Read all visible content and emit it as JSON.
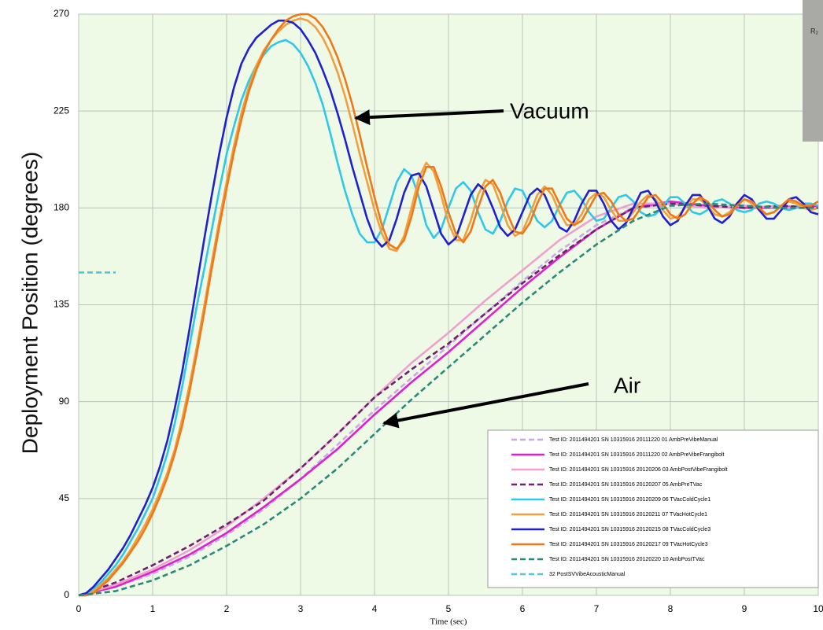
{
  "chart_data": {
    "type": "line",
    "y_label": "Deployment Position (degrees)",
    "x_label": "Time (sec)",
    "annotations": [
      "Vacuum",
      "Air"
    ],
    "photo_label": "R₂",
    "xlim": [
      0,
      10
    ],
    "xticks": [
      0,
      1,
      2,
      3,
      4,
      5,
      6,
      7,
      8,
      9,
      10
    ],
    "ylim": [
      0,
      270
    ],
    "yticks": [
      0,
      45,
      90,
      135,
      180,
      225,
      270
    ],
    "grid": true,
    "legend": "bottom-right",
    "x": [
      0,
      0.1,
      0.2,
      0.3,
      0.4,
      0.5,
      0.6,
      0.7,
      0.8,
      0.9,
      1,
      1.1,
      1.2,
      1.3,
      1.4,
      1.5,
      1.6,
      1.7,
      1.8,
      1.9,
      2,
      2.1,
      2.2,
      2.3,
      2.4,
      2.5,
      2.6,
      2.7,
      2.8,
      2.9,
      3,
      3.1,
      3.2,
      3.3,
      3.4,
      3.5,
      3.6,
      3.7,
      3.8,
      3.9,
      4,
      4.1,
      4.2,
      4.3,
      4.4,
      4.5,
      4.6,
      4.7,
      4.8,
      4.9,
      5,
      5.1,
      5.2,
      5.3,
      5.4,
      5.5,
      5.6,
      5.7,
      5.8,
      5.9,
      6,
      6.1,
      6.2,
      6.3,
      6.4,
      6.5,
      6.6,
      6.7,
      6.8,
      6.9,
      7,
      7.1,
      7.2,
      7.3,
      7.4,
      7.5,
      7.6,
      7.7,
      7.8,
      7.9,
      8,
      8.1,
      8.2,
      8.3,
      8.4,
      8.5,
      8.6,
      8.7,
      8.8,
      8.9,
      9,
      9.1,
      9.2,
      9.3,
      9.4,
      9.5,
      9.6,
      9.7,
      9.8,
      9.9,
      10
    ],
    "series": [
      {
        "name": "Test ID: 2011494201 SN 10315916 20111220 01 AmbPreVibeManual",
        "color": "#c8a8e8",
        "dashed": true,
        "x": [
          0,
          0.5,
          1,
          1.5,
          2,
          2.5,
          3,
          3.5,
          4,
          4.5,
          5,
          5.5,
          6,
          6.5,
          7,
          7.5,
          8,
          8.5,
          9,
          9.5,
          10
        ],
        "values": [
          0,
          4,
          10,
          18,
          28,
          40,
          54,
          70,
          86,
          101,
          116,
          131,
          146,
          160,
          172,
          180,
          182,
          181,
          180,
          181,
          180
        ]
      },
      {
        "name": "Test ID: 2011494201 SN 10315916 20111220 02 AmbPreVibeFrangibolt",
        "color": "#e020d0",
        "dashed": false,
        "x": [
          0,
          0.5,
          1,
          1.5,
          2,
          2.5,
          3,
          3.5,
          4,
          4.5,
          5,
          5.5,
          6,
          6.5,
          7,
          7.5,
          8,
          8.5,
          9,
          9.5,
          10
        ],
        "values": [
          0,
          4,
          11,
          19,
          29,
          41,
          54,
          68,
          84,
          99,
          113,
          128,
          143,
          157,
          170,
          180,
          183,
          181,
          180,
          180,
          181
        ]
      },
      {
        "name": "Test ID: 2011494201 SN 10315916 20120206 03 AmbPostVibeFrangibolt",
        "color": "#f0a0d0",
        "dashed": false,
        "x": [
          0,
          0.5,
          1,
          1.5,
          2,
          2.5,
          3,
          3.5,
          4,
          4.5,
          5,
          5.5,
          6,
          6.5,
          7,
          7.5,
          8,
          8.5,
          9,
          9.5,
          10
        ],
        "values": [
          0,
          5,
          12,
          21,
          32,
          45,
          59,
          75,
          92,
          108,
          122,
          137,
          151,
          165,
          176,
          182,
          182,
          180,
          181,
          180,
          180
        ]
      },
      {
        "name": "Test ID: 2011494201 SN 10315916 20120207 05 AmbPreTVac",
        "color": "#702070",
        "dashed": true,
        "x": [
          0,
          0.5,
          1,
          1.5,
          2,
          2.5,
          3,
          3.5,
          4,
          4.5,
          5,
          5.5,
          6,
          6.5,
          7,
          7.5,
          8,
          8.5,
          9,
          9.5,
          10
        ],
        "values": [
          0,
          6,
          14,
          23,
          33,
          44,
          59,
          75,
          92,
          105,
          117,
          131,
          145,
          158,
          170,
          180,
          182,
          181,
          180,
          181,
          180
        ]
      },
      {
        "name": "Test ID: 2011494201 SN 10315916 20120209 06 TVacColdCycle1",
        "color": "#30c8e8",
        "dashed": false,
        "values": [
          0,
          1,
          3,
          6,
          10,
          14,
          19,
          25,
          31,
          38,
          45,
          55,
          66,
          80,
          97,
          116,
          135,
          152,
          170,
          188,
          205,
          218,
          230,
          239,
          246,
          251,
          255,
          257,
          258,
          256,
          252,
          246,
          238,
          228,
          215,
          201,
          188,
          177,
          168,
          164,
          164,
          170,
          181,
          192,
          198,
          195,
          185,
          172,
          166,
          170,
          180,
          189,
          192,
          188,
          178,
          170,
          168,
          174,
          183,
          189,
          188,
          181,
          174,
          171,
          174,
          181,
          187,
          188,
          184,
          178,
          174,
          175,
          180,
          185,
          186,
          183,
          178,
          176,
          177,
          181,
          185,
          185,
          182,
          178,
          177,
          179,
          183,
          184,
          182,
          179,
          178,
          179,
          182,
          183,
          182,
          180,
          179,
          180,
          182,
          182,
          181
        ]
      },
      {
        "name": "Test ID: 2011494201 SN 10315916 20120211 07 TVacHotCycle1",
        "color": "#f0a040",
        "dashed": false,
        "values": [
          0,
          0,
          2,
          5,
          8,
          12,
          16,
          21,
          27,
          33,
          40,
          48,
          57,
          68,
          82,
          98,
          116,
          135,
          155,
          174,
          192,
          209,
          224,
          236,
          246,
          253,
          258,
          262,
          265,
          267,
          268,
          267,
          264,
          259,
          252,
          243,
          232,
          219,
          205,
          192,
          179,
          168,
          161,
          160,
          167,
          180,
          194,
          201,
          197,
          186,
          173,
          165,
          165,
          174,
          186,
          193,
          191,
          182,
          172,
          167,
          169,
          177,
          186,
          190,
          186,
          178,
          172,
          172,
          177,
          184,
          187,
          185,
          179,
          174,
          174,
          178,
          183,
          186,
          184,
          179,
          175,
          176,
          180,
          184,
          184,
          181,
          177,
          176,
          178,
          182,
          184,
          182,
          179,
          177,
          178,
          181,
          183,
          182,
          180,
          179,
          180
        ]
      },
      {
        "name": "Test ID: 2011494201 SN 10315916 20120215 08 TVacColdCycle3",
        "color": "#2020d0",
        "dashed": false,
        "values": [
          0,
          1,
          4,
          8,
          12,
          17,
          22,
          28,
          35,
          42,
          50,
          60,
          72,
          87,
          104,
          124,
          145,
          166,
          186,
          205,
          222,
          236,
          247,
          254,
          259,
          262,
          265,
          267,
          267,
          266,
          263,
          258,
          252,
          244,
          235,
          224,
          212,
          199,
          187,
          175,
          166,
          162,
          165,
          175,
          187,
          195,
          196,
          190,
          179,
          168,
          163,
          166,
          176,
          186,
          191,
          188,
          180,
          171,
          167,
          170,
          178,
          186,
          189,
          186,
          178,
          171,
          169,
          174,
          182,
          188,
          188,
          182,
          174,
          170,
          173,
          180,
          187,
          188,
          183,
          176,
          172,
          174,
          181,
          186,
          186,
          181,
          175,
          173,
          176,
          182,
          186,
          184,
          179,
          175,
          175,
          179,
          184,
          185,
          182,
          178,
          177
        ]
      },
      {
        "name": "Test ID: 2011494201 SN 10315916 20120217 09 TVacHotCycle3",
        "color": "#f07818",
        "dashed": false,
        "values": [
          0,
          0,
          1,
          4,
          7,
          11,
          15,
          20,
          25,
          31,
          38,
          46,
          55,
          66,
          79,
          95,
          113,
          132,
          152,
          171,
          189,
          206,
          221,
          234,
          244,
          252,
          258,
          263,
          267,
          269,
          270,
          270,
          268,
          264,
          258,
          250,
          240,
          228,
          214,
          199,
          185,
          172,
          163,
          161,
          165,
          176,
          190,
          199,
          199,
          190,
          178,
          168,
          164,
          169,
          180,
          190,
          193,
          187,
          177,
          169,
          168,
          173,
          182,
          189,
          189,
          182,
          175,
          172,
          174,
          180,
          186,
          187,
          183,
          177,
          174,
          175,
          180,
          185,
          186,
          182,
          177,
          175,
          177,
          182,
          185,
          183,
          179,
          176,
          177,
          181,
          184,
          183,
          180,
          177,
          178,
          181,
          184,
          183,
          181,
          181,
          183
        ]
      },
      {
        "name": "Test ID: 2011494201 SN 10315916 20120220 10 AmbPostTVac",
        "color": "#2a8a78",
        "dashed": true,
        "x": [
          0,
          0.5,
          1,
          1.5,
          2,
          2.5,
          3,
          3.5,
          4,
          4.5,
          5,
          5.5,
          6,
          6.5,
          7,
          7.5,
          8,
          8.5,
          9,
          9.5,
          10
        ],
        "values": [
          0,
          2,
          7,
          14,
          23,
          33,
          45,
          59,
          75,
          91,
          106,
          121,
          136,
          150,
          163,
          174,
          181,
          182,
          181,
          180,
          180
        ]
      },
      {
        "name": "32 PostSVVibeAcousticManual",
        "color": "#50c8d8",
        "dashed": true,
        "x": [
          0,
          0.5
        ],
        "values": [
          150,
          150
        ]
      }
    ]
  }
}
